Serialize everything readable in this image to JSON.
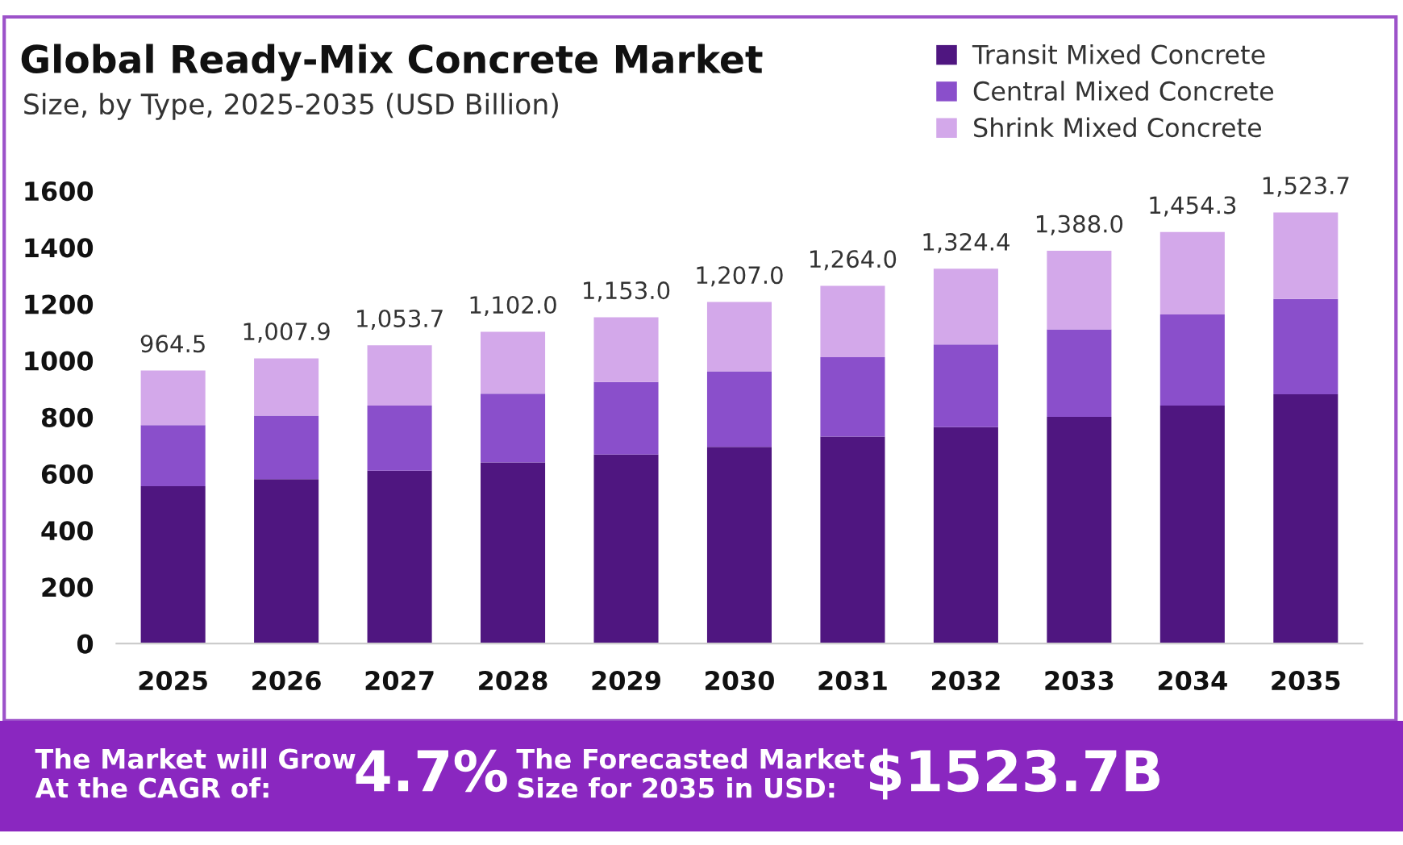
{
  "chart_data": {
    "type": "bar",
    "stacked": true,
    "title": "Global Ready-Mix Concrete Market",
    "subtitle": "Size, by Type, 2025-2035 (USD Billion)",
    "categories": [
      "2025",
      "2026",
      "2027",
      "2028",
      "2029",
      "2030",
      "2031",
      "2032",
      "2033",
      "2034",
      "2035"
    ],
    "series": [
      {
        "name": "Transit Mixed Concrete",
        "color": "#4f1680",
        "values": [
          556,
          581,
          611,
          640,
          668,
          695,
          731,
          765,
          801,
          841,
          881
        ]
      },
      {
        "name": "Central Mixed Concrete",
        "color": "#8a4fcb",
        "values": [
          216,
          224,
          230,
          243,
          256,
          267,
          281,
          292,
          309,
          322,
          337
        ]
      },
      {
        "name": "Shrink Mixed Concrete",
        "color": "#d3a8ea",
        "values": [
          192.5,
          202.9,
          212.7,
          219,
          229,
          245,
          252,
          267.4,
          278,
          291.3,
          305.7
        ]
      }
    ],
    "totals": [
      "964.5",
      "1,007.9",
      "1,053.7",
      "1,102.0",
      "1,153.0",
      "1,207.0",
      "1,264.0",
      "1,324.4",
      "1,388.0",
      "1,454.3",
      "1,523.7"
    ],
    "ylim": [
      0,
      1600
    ],
    "yticks": [
      0,
      200,
      400,
      600,
      800,
      1000,
      1200,
      1400,
      1600
    ],
    "grid": false,
    "legend": "top right",
    "annotations": [
      "The Market will Grow\nAt the CAGR of:",
      "4.7%",
      "The Forecasted Market\nSize for 2035 in USD:",
      "$1523.7B"
    ]
  }
}
